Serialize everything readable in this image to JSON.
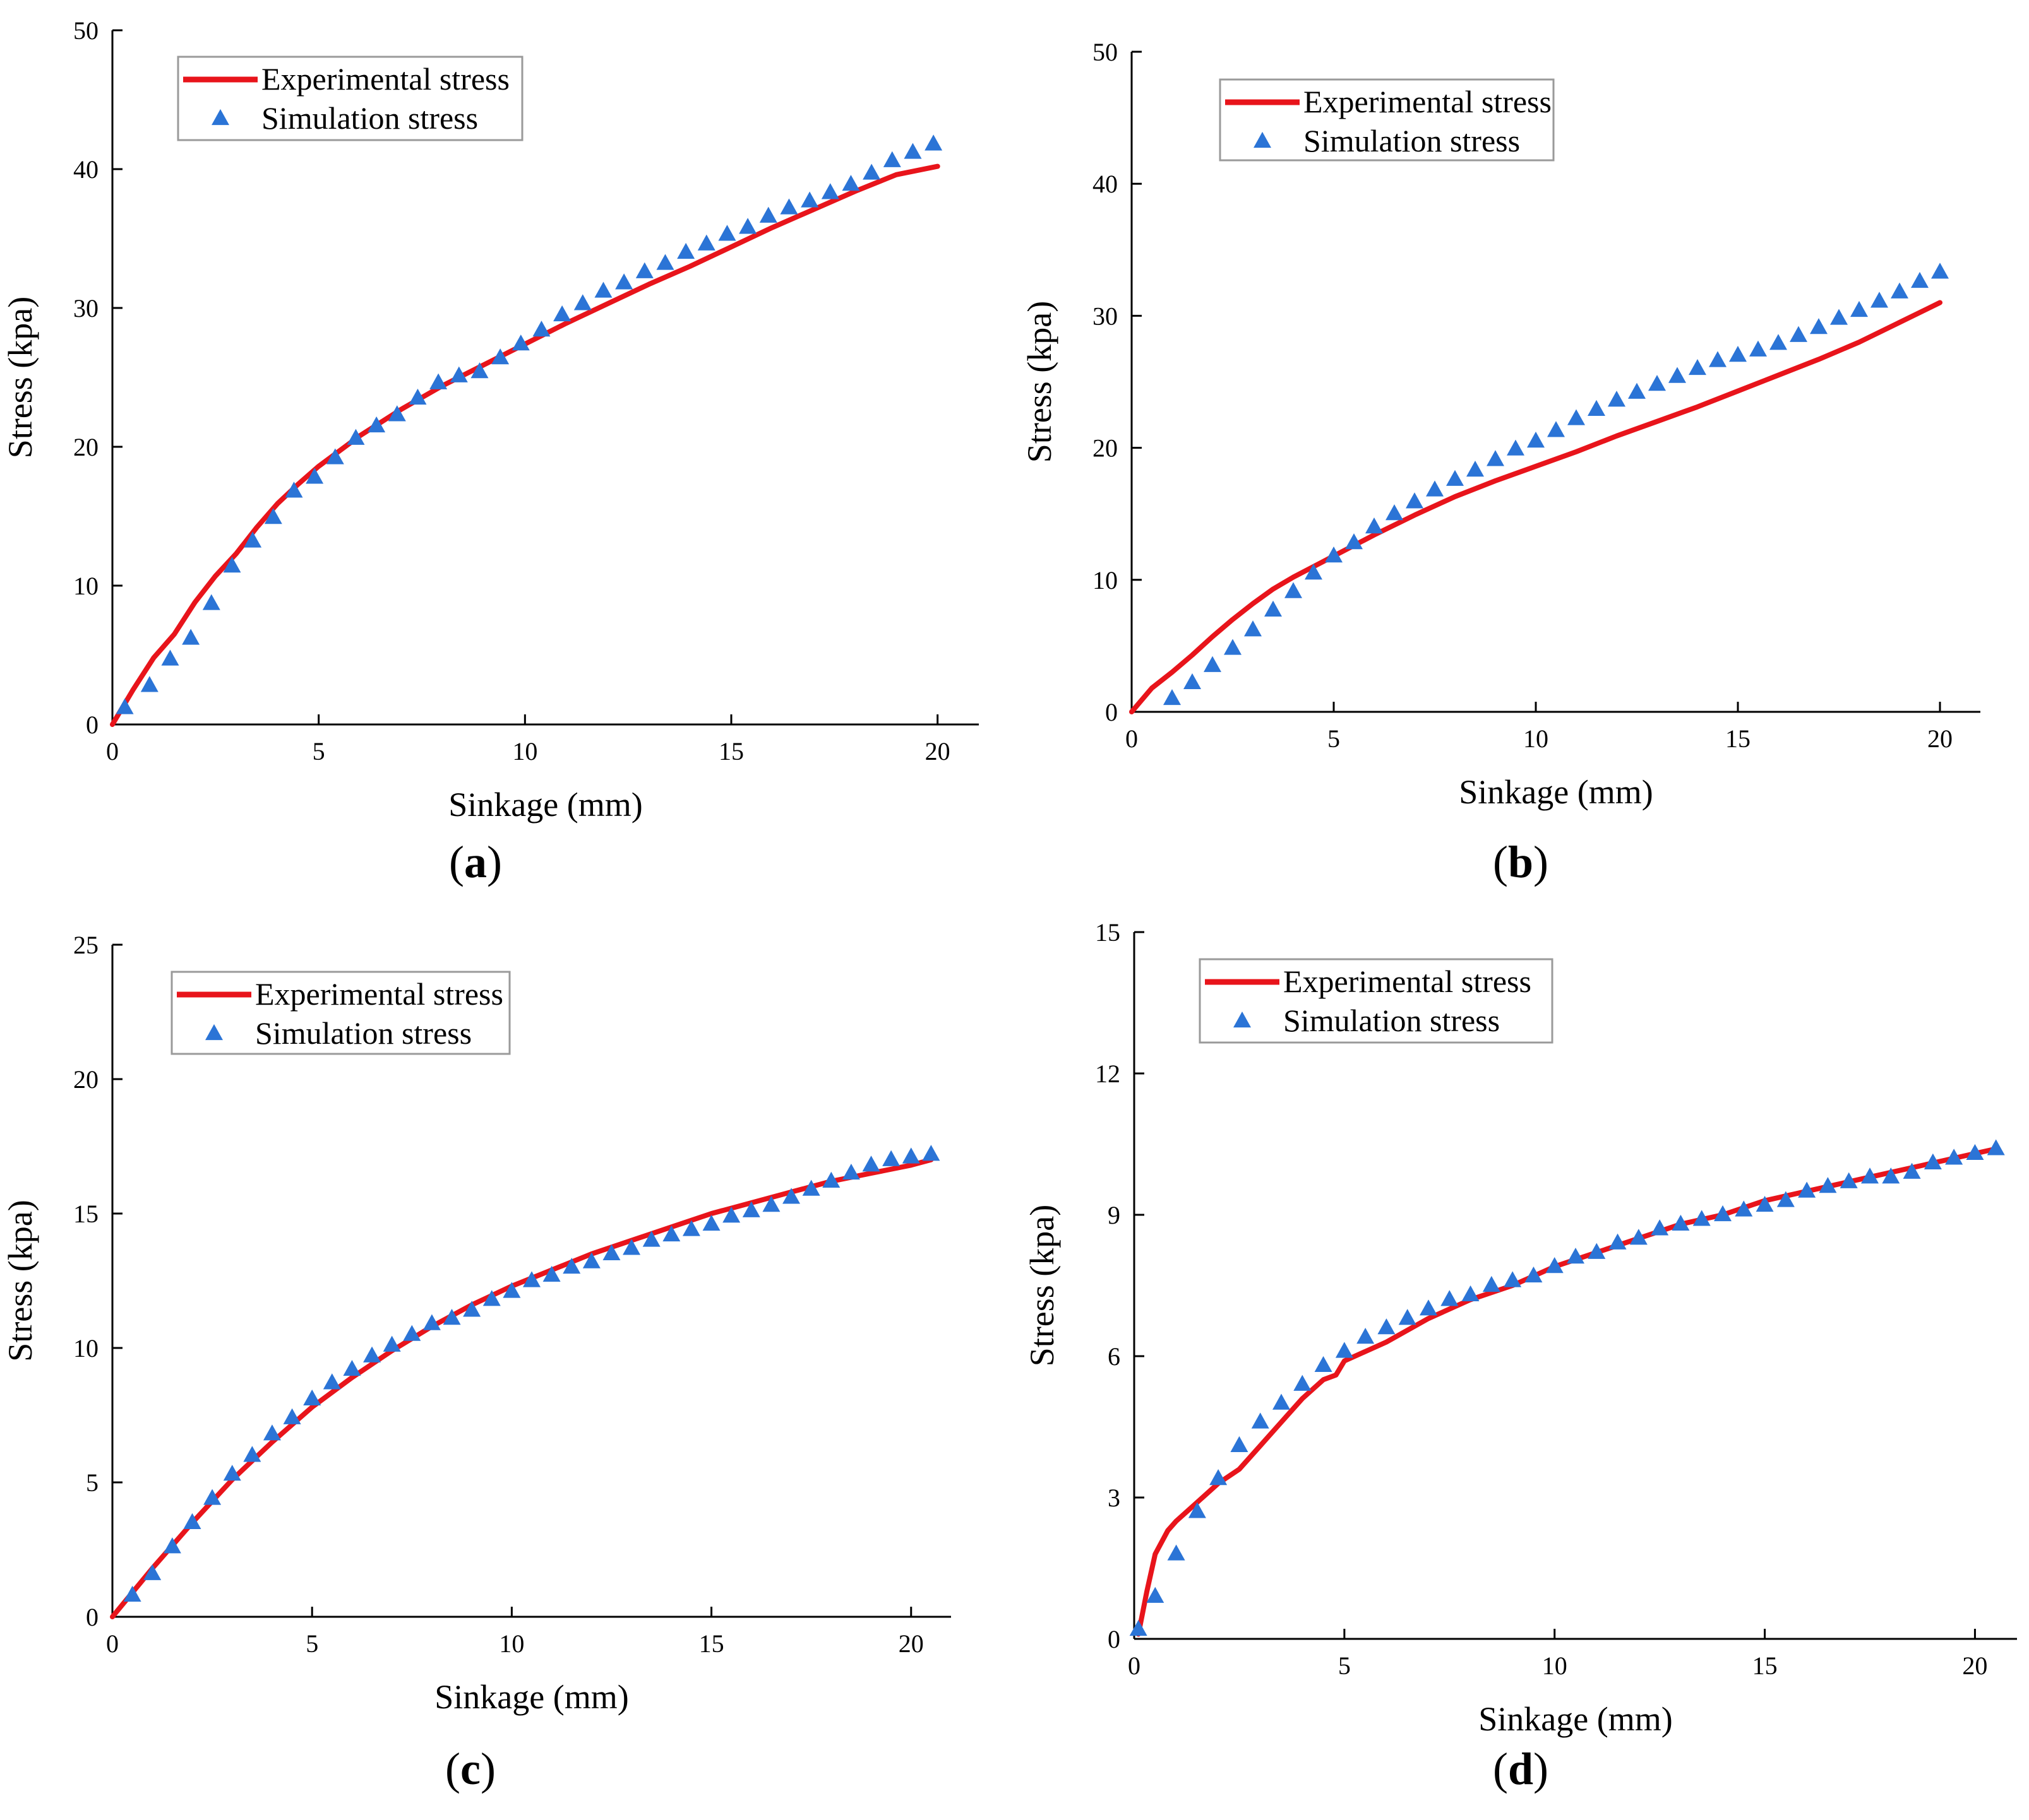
{
  "series_names": {
    "exp": "Experimental stress",
    "sim": "Simulation stress"
  },
  "colors": {
    "exp": "#e8141b",
    "sim": "#2b74d6",
    "axis": "#000000"
  },
  "chart_data": [
    {
      "id": "a",
      "type": "line",
      "panel_label": "a",
      "xlabel": "Sinkage (mm)",
      "ylabel": "Stress (kpa)",
      "xlim": [
        0,
        21
      ],
      "ylim": [
        0,
        50
      ],
      "xticks": [
        0,
        5,
        10,
        15,
        20
      ],
      "yticks": [
        0,
        10,
        20,
        30,
        40,
        50
      ],
      "legend": "top-left",
      "series": [
        {
          "name": "Experimental stress",
          "kind": "line",
          "x": [
            0,
            0.5,
            1,
            1.5,
            2,
            2.5,
            3,
            3.5,
            4,
            4.5,
            5,
            6,
            7,
            8,
            9,
            10,
            11,
            12,
            13,
            14,
            15,
            16,
            17,
            18,
            19,
            20
          ],
          "y": [
            0,
            2.5,
            4.8,
            6.5,
            8.8,
            10.7,
            12.3,
            14.2,
            15.9,
            17.3,
            18.6,
            20.8,
            22.7,
            24.4,
            25.9,
            27.4,
            28.9,
            30.3,
            31.7,
            33.0,
            34.4,
            35.8,
            37.1,
            38.4,
            39.6,
            40.2
          ]
        },
        {
          "name": "Simulation stress",
          "kind": "scatter",
          "x": [
            0.3,
            0.9,
            1.4,
            1.9,
            2.4,
            2.9,
            3.4,
            3.9,
            4.4,
            4.9,
            5.4,
            5.9,
            6.4,
            6.9,
            7.4,
            7.9,
            8.4,
            8.9,
            9.4,
            9.9,
            10.4,
            10.9,
            11.4,
            11.9,
            12.4,
            12.9,
            13.4,
            13.9,
            14.4,
            14.9,
            15.4,
            15.9,
            16.4,
            16.9,
            17.4,
            17.9,
            18.4,
            18.9,
            19.4,
            19.9
          ],
          "y": [
            1.2,
            2.8,
            4.7,
            6.2,
            8.7,
            11.4,
            13.2,
            14.9,
            16.8,
            17.8,
            19.2,
            20.6,
            21.5,
            22.3,
            23.5,
            24.6,
            25.1,
            25.4,
            26.4,
            27.4,
            28.4,
            29.5,
            30.3,
            31.2,
            31.8,
            32.6,
            33.2,
            34.0,
            34.6,
            35.3,
            35.8,
            36.6,
            37.2,
            37.7,
            38.3,
            38.9,
            39.7,
            40.6,
            41.2,
            41.8
          ]
        }
      ]
    },
    {
      "id": "b",
      "type": "line",
      "panel_label": "b",
      "xlabel": "Sinkage (mm)",
      "ylabel": "Stress (kpa)",
      "xlim": [
        0,
        21
      ],
      "ylim": [
        0,
        50
      ],
      "xticks": [
        0,
        5,
        10,
        15,
        20
      ],
      "yticks": [
        0,
        10,
        20,
        30,
        40,
        50
      ],
      "legend": "top-left",
      "series": [
        {
          "name": "Experimental stress",
          "kind": "line",
          "x": [
            0,
            0.5,
            1,
            1.5,
            2,
            2.5,
            3,
            3.5,
            4,
            5,
            6,
            7,
            8,
            9,
            10,
            11,
            12,
            13,
            14,
            15,
            16,
            17,
            18,
            19,
            20
          ],
          "y": [
            0,
            1.8,
            3.0,
            4.3,
            5.7,
            7.0,
            8.2,
            9.3,
            10.2,
            11.8,
            13.4,
            14.9,
            16.3,
            17.5,
            18.6,
            19.7,
            20.9,
            22.0,
            23.1,
            24.3,
            25.5,
            26.7,
            28.0,
            29.5,
            31.0
          ]
        },
        {
          "name": "Simulation stress",
          "kind": "scatter",
          "x": [
            1,
            1.5,
            2,
            2.5,
            3,
            3.5,
            4,
            4.5,
            5,
            5.5,
            6,
            6.5,
            7,
            7.5,
            8,
            8.5,
            9,
            9.5,
            10,
            10.5,
            11,
            11.5,
            12,
            12.5,
            13,
            13.5,
            14,
            14.5,
            15,
            15.5,
            16,
            16.5,
            17,
            17.5,
            18,
            18.5,
            19,
            19.5,
            20
          ],
          "y": [
            1.0,
            2.2,
            3.5,
            4.8,
            6.2,
            7.7,
            9.1,
            10.5,
            11.8,
            12.8,
            14.0,
            15.0,
            15.9,
            16.8,
            17.6,
            18.3,
            19.1,
            19.9,
            20.5,
            21.3,
            22.2,
            22.9,
            23.6,
            24.2,
            24.8,
            25.4,
            26.0,
            26.6,
            27.0,
            27.4,
            27.9,
            28.5,
            29.1,
            29.8,
            30.4,
            31.1,
            31.8,
            32.6,
            33.3
          ]
        }
      ]
    },
    {
      "id": "c",
      "type": "line",
      "panel_label": "c",
      "xlabel": "Sinkage (mm)",
      "ylabel": "Stress (kpa)",
      "xlim": [
        0,
        21
      ],
      "ylim": [
        0,
        25
      ],
      "xticks": [
        0,
        5,
        10,
        15,
        20
      ],
      "yticks": [
        0,
        5,
        10,
        15,
        20,
        25
      ],
      "legend": "top-left",
      "series": [
        {
          "name": "Experimental stress",
          "kind": "line",
          "x": [
            0,
            1,
            2,
            3,
            4,
            5,
            6,
            7,
            8,
            9,
            10,
            11,
            12,
            13,
            14,
            15,
            16,
            17,
            18,
            19,
            20,
            20.5
          ],
          "y": [
            0,
            1.8,
            3.5,
            5.1,
            6.5,
            7.8,
            8.9,
            9.9,
            10.8,
            11.6,
            12.3,
            12.9,
            13.5,
            14.0,
            14.5,
            15.0,
            15.4,
            15.8,
            16.2,
            16.5,
            16.8,
            17.0
          ]
        },
        {
          "name": "Simulation stress",
          "kind": "scatter",
          "x": [
            0.5,
            1,
            1.5,
            2,
            2.5,
            3,
            3.5,
            4,
            4.5,
            5,
            5.5,
            6,
            6.5,
            7,
            7.5,
            8,
            8.5,
            9,
            9.5,
            10,
            10.5,
            11,
            11.5,
            12,
            12.5,
            13,
            13.5,
            14,
            14.5,
            15,
            15.5,
            16,
            16.5,
            17,
            17.5,
            18,
            18.5,
            19,
            19.5,
            20,
            20.5
          ],
          "y": [
            0.8,
            1.6,
            2.6,
            3.5,
            4.4,
            5.3,
            6.0,
            6.8,
            7.4,
            8.1,
            8.7,
            9.2,
            9.7,
            10.1,
            10.5,
            10.9,
            11.1,
            11.4,
            11.8,
            12.1,
            12.5,
            12.7,
            13.0,
            13.2,
            13.5,
            13.7,
            14.0,
            14.2,
            14.4,
            14.6,
            14.9,
            15.1,
            15.3,
            15.6,
            15.9,
            16.2,
            16.5,
            16.8,
            17.0,
            17.1,
            17.2
          ]
        }
      ]
    },
    {
      "id": "d",
      "type": "line",
      "panel_label": "d",
      "xlabel": "Sinkage (mm)",
      "ylabel": "Stress (kpa)",
      "xlim": [
        0,
        21
      ],
      "ylim": [
        0,
        15
      ],
      "xticks": [
        0,
        5,
        10,
        15,
        20
      ],
      "yticks": [
        0,
        3,
        6,
        9,
        12,
        15
      ],
      "legend": "top-left",
      "series": [
        {
          "name": "Experimental stress",
          "kind": "line",
          "x": [
            0.1,
            0.3,
            0.5,
            0.8,
            1,
            1.5,
            2,
            2.5,
            3,
            3.5,
            4,
            4.5,
            4.8,
            5,
            6,
            7,
            8,
            9,
            10,
            11,
            12,
            13,
            14,
            15,
            16,
            17,
            18,
            19,
            20,
            20.5
          ],
          "y": [
            0.1,
            1.0,
            1.8,
            2.3,
            2.5,
            2.9,
            3.3,
            3.6,
            4.1,
            4.6,
            5.1,
            5.5,
            5.6,
            5.9,
            6.3,
            6.8,
            7.2,
            7.5,
            7.9,
            8.2,
            8.5,
            8.8,
            9.0,
            9.3,
            9.5,
            9.7,
            9.9,
            10.1,
            10.3,
            10.4
          ]
        },
        {
          "name": "Simulation stress",
          "kind": "scatter",
          "x": [
            0.1,
            0.5,
            1,
            1.5,
            2,
            2.5,
            3,
            3.5,
            4,
            4.5,
            5,
            5.5,
            6,
            6.5,
            7,
            7.5,
            8,
            8.5,
            9,
            9.5,
            10,
            10.5,
            11,
            11.5,
            12,
            12.5,
            13,
            13.5,
            14,
            14.5,
            15,
            15.5,
            16,
            16.5,
            17,
            17.5,
            18,
            18.5,
            19,
            19.5,
            20,
            20.5
          ],
          "y": [
            0.2,
            0.9,
            1.8,
            2.7,
            3.4,
            4.1,
            4.6,
            5.0,
            5.4,
            5.8,
            6.1,
            6.4,
            6.6,
            6.8,
            7.0,
            7.2,
            7.3,
            7.5,
            7.6,
            7.7,
            7.9,
            8.1,
            8.2,
            8.4,
            8.5,
            8.7,
            8.8,
            8.9,
            9.0,
            9.1,
            9.2,
            9.3,
            9.5,
            9.6,
            9.7,
            9.8,
            9.8,
            9.9,
            10.1,
            10.2,
            10.3,
            10.4
          ]
        }
      ]
    }
  ]
}
